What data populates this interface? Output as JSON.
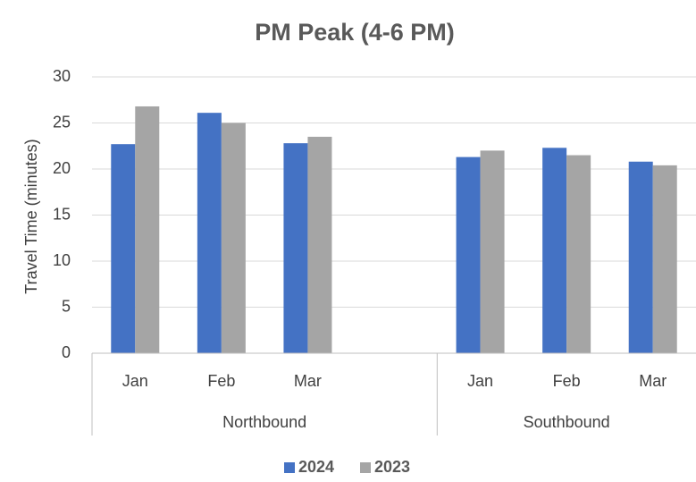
{
  "chart_data": {
    "type": "bar",
    "title": "PM Peak (4-6 PM)",
    "y_label": "Travel Time (minutes)",
    "categories": [
      "Jan",
      "Feb",
      "Mar",
      null,
      "Jan",
      "Feb",
      "Mar"
    ],
    "groups": [
      {
        "name": "Northbound",
        "size": 4
      },
      {
        "name": "Southbound",
        "size": 3
      }
    ],
    "series": [
      {
        "name": "2024",
        "color": "#4472c4",
        "values": [
          22.7,
          26.1,
          22.8,
          null,
          21.3,
          22.3,
          20.8
        ]
      },
      {
        "name": "2023",
        "color": "#a5a5a5",
        "values": [
          26.8,
          25.0,
          23.5,
          null,
          22.0,
          21.5,
          20.4
        ]
      }
    ],
    "ylim": [
      0,
      30
    ],
    "yticks": [
      0,
      5,
      10,
      15,
      20,
      25,
      30
    ],
    "grid": true,
    "legend": "bottom"
  }
}
